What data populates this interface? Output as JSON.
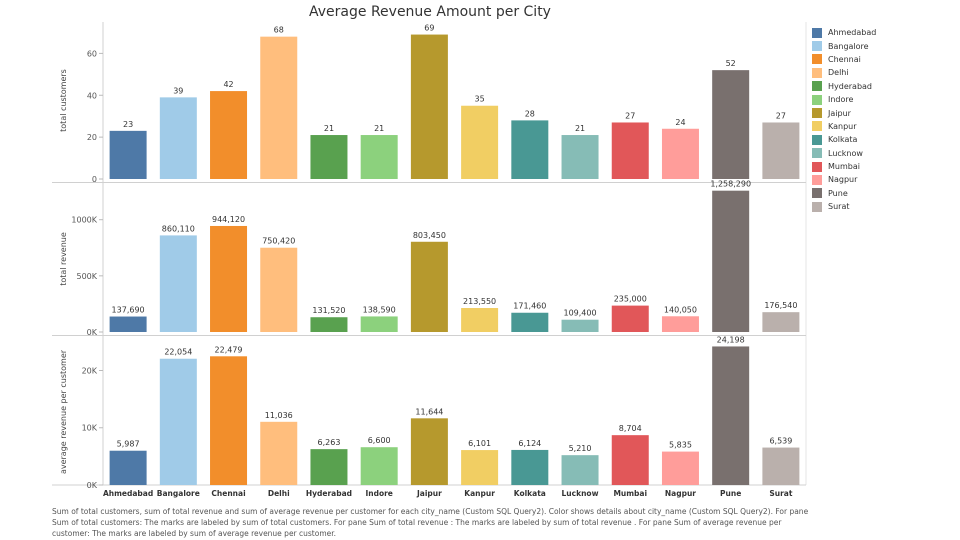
{
  "chart_data": {
    "type": "bar",
    "title": "Average Revenue Amount per City",
    "categories": [
      "Ahmedabad",
      "Bangalore",
      "Chennai",
      "Delhi",
      "Hyderabad",
      "Indore",
      "Jaipur",
      "Kanpur",
      "Kolkata",
      "Lucknow",
      "Mumbai",
      "Nagpur",
      "Pune",
      "Surat"
    ],
    "colors": [
      "#4e79a7",
      "#a0cbe8",
      "#f28e2b",
      "#ffbe7d",
      "#59a14f",
      "#8cd17d",
      "#b6992d",
      "#f1ce63",
      "#499894",
      "#86bcb6",
      "#e15759",
      "#ff9d9a",
      "#79706e",
      "#bab0ac"
    ],
    "panes": [
      {
        "ylabel": "total customers",
        "ylim": [
          0,
          75
        ],
        "ticks": [
          0,
          20,
          40,
          60
        ],
        "tick_labels": [
          "0",
          "20",
          "40",
          "60"
        ],
        "values": [
          23,
          39,
          42,
          68,
          21,
          21,
          69,
          35,
          28,
          21,
          27,
          24,
          52,
          27
        ],
        "labels": [
          "23",
          "39",
          "42",
          "68",
          "21",
          "21",
          "69",
          "35",
          "28",
          "21",
          "27",
          "24",
          "52",
          "27"
        ]
      },
      {
        "ylabel": "total revenue",
        "ylim": [
          0,
          1300000
        ],
        "ticks": [
          0,
          500000,
          1000000
        ],
        "tick_labels": [
          "0K",
          "500K",
          "1000K"
        ],
        "values": [
          137690,
          860110,
          944120,
          750420,
          131520,
          138590,
          803450,
          213550,
          171460,
          109400,
          235000,
          140050,
          1258290,
          176540
        ],
        "labels": [
          "137,690",
          "860,110",
          "944,120",
          "750,420",
          "131,520",
          "138,590",
          "803,450",
          "213,550",
          "171,460",
          "109,400",
          "235,000",
          "140,050",
          "1,258,290",
          "176,540"
        ]
      },
      {
        "ylabel": "average revenue per customer",
        "ylim": [
          0,
          25500
        ],
        "ticks": [
          0,
          10000,
          20000
        ],
        "tick_labels": [
          "0K",
          "10K",
          "20K"
        ],
        "values": [
          5987,
          22054,
          22479,
          11036,
          6263,
          6600,
          11644,
          6101,
          6124,
          5210,
          8704,
          5835,
          24198,
          6539
        ],
        "labels": [
          "5,987",
          "22,054",
          "22,479",
          "11,036",
          "6,263",
          "6,600",
          "11,644",
          "6,101",
          "6,124",
          "5,210",
          "8,704",
          "5,835",
          "24,198",
          "6,539"
        ]
      }
    ],
    "legend": {
      "placement": "right",
      "entries": [
        "Ahmedabad",
        "Bangalore",
        "Chennai",
        "Delhi",
        "Hyderabad",
        "Indore",
        "Jaipur",
        "Kanpur",
        "Kolkata",
        "Lucknow",
        "Mumbai",
        "Nagpur",
        "Pune",
        "Surat"
      ]
    },
    "grid": false
  },
  "caption": "Sum of total customers, sum of total revenue  and sum of average revenue per customer for each city_name (Custom SQL Query2).  Color shows details about city_name (Custom SQL Query2).  For pane Sum of total customers:  The marks are labeled by sum of total customers.  For pane Sum of total revenue :  The marks are labeled by sum of total revenue .  For pane Sum of average revenue per customer:  The marks are labeled by sum of average revenue per customer."
}
